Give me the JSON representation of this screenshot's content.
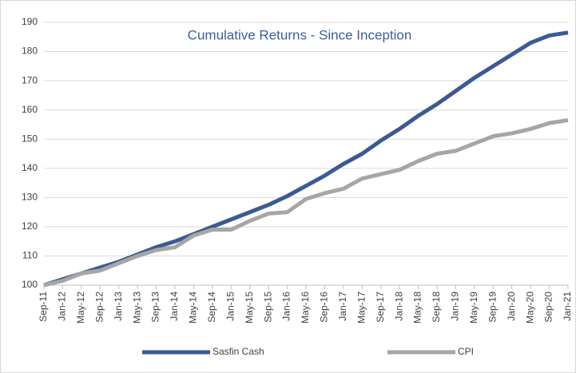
{
  "chart_data": {
    "type": "line",
    "title": "Cumulative Returns - Since Inception",
    "categories": [
      "Sep-11",
      "Jan-12",
      "May-12",
      "Sep-12",
      "Jan-13",
      "May-13",
      "Sep-13",
      "Jan-14",
      "May-14",
      "Sep-14",
      "Jan-15",
      "May-15",
      "Sep-15",
      "Jan-16",
      "May-16",
      "Sep-16",
      "Jan-17",
      "May-17",
      "Sep-17",
      "Jan-18",
      "May-18",
      "Sep-18",
      "Jan-19",
      "May-19",
      "Sep-19",
      "Jan-20",
      "May-20",
      "Sep-20",
      "Jan-21"
    ],
    "series": [
      {
        "name": "Sasfin Cash",
        "color": "#3b5a92",
        "values": [
          100,
          102,
          104,
          106,
          108,
          110.5,
          113,
          115,
          117.5,
          120,
          122.5,
          125,
          127.5,
          130.5,
          134,
          137.5,
          141.5,
          145,
          149.5,
          153.5,
          158,
          162,
          166.5,
          171,
          175,
          179,
          183,
          185.5,
          186.5
        ]
      },
      {
        "name": "CPI",
        "color": "#a6a6a6",
        "values": [
          100,
          101.5,
          104,
          105,
          107.5,
          110,
          112,
          113,
          117,
          119,
          119,
          122,
          124.5,
          125,
          129.5,
          131.5,
          133,
          136.5,
          138,
          139.5,
          142.5,
          145,
          146,
          148.5,
          151,
          152,
          153.5,
          155.5,
          156.5
        ]
      }
    ],
    "ylim": [
      100,
      190
    ],
    "yticks": [
      100,
      110,
      120,
      130,
      140,
      150,
      160,
      170,
      180,
      190
    ],
    "grid": true
  }
}
